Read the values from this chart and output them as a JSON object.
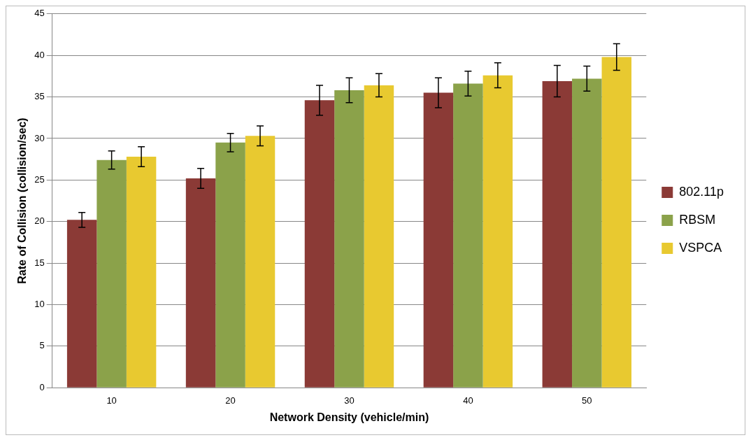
{
  "chart_data": {
    "type": "bar",
    "xlabel": "Network Density (vehicle/min)",
    "ylabel": "Rate of Collision (collision/sec)",
    "categories": [
      "10",
      "20",
      "30",
      "40",
      "50"
    ],
    "series": [
      {
        "name": "802.11p",
        "color": "#8b3a36",
        "values": [
          20.2,
          25.2,
          34.6,
          35.5,
          36.9
        ],
        "errors": [
          0.9,
          1.2,
          1.8,
          1.8,
          1.9
        ]
      },
      {
        "name": "RBSM",
        "color": "#8ba24a",
        "values": [
          27.4,
          29.5,
          35.8,
          36.6,
          37.2
        ],
        "errors": [
          1.1,
          1.1,
          1.5,
          1.5,
          1.5
        ]
      },
      {
        "name": "VSPCA",
        "color": "#e8c930",
        "values": [
          27.8,
          30.3,
          36.4,
          37.6,
          39.8
        ],
        "errors": [
          1.2,
          1.2,
          1.4,
          1.5,
          1.6
        ]
      }
    ],
    "ylim": [
      0,
      45
    ],
    "yticks": [
      0,
      5,
      10,
      15,
      20,
      25,
      30,
      35,
      40,
      45
    ],
    "grid": "y",
    "legend": "right"
  }
}
